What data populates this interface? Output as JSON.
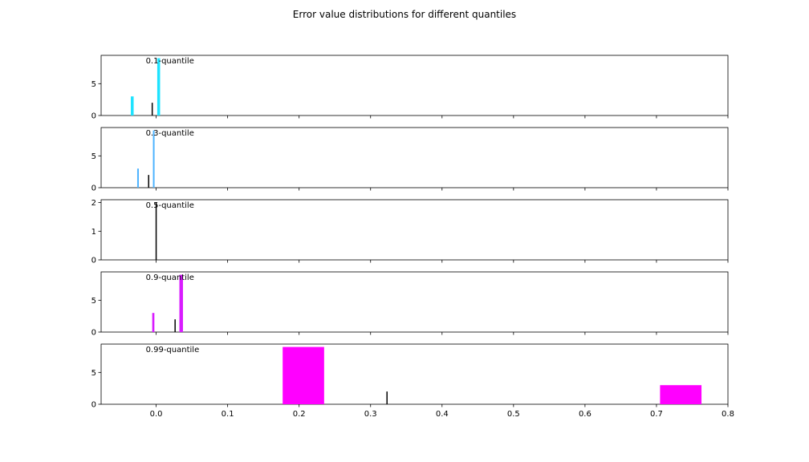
{
  "chart_data": {
    "type": "bar",
    "title": "Error value distributions for different quantiles",
    "xlim": [
      -0.077,
      0.8
    ],
    "xticks": [
      0.0,
      0.1,
      0.2,
      0.3,
      0.4,
      0.5,
      0.6,
      0.7,
      0.8
    ],
    "xtick_labels": [
      "0.0",
      "0.1",
      "0.2",
      "0.3",
      "0.4",
      "0.5",
      "0.6",
      "0.7",
      "0.8"
    ],
    "grid": false,
    "panels": [
      {
        "label": "0.1-quantile",
        "ylim": [
          0,
          9.45
        ],
        "yticks": [
          0,
          5
        ],
        "color": "#1ee3ff",
        "bars": [
          {
            "x0": -0.0355,
            "x1": -0.0315,
            "height": 3
          },
          {
            "x0": 0.0015,
            "x1": 0.0055,
            "height": 9
          }
        ],
        "marker": {
          "x": -0.0055,
          "height": 2
        }
      },
      {
        "label": "0.3-quantile",
        "ylim": [
          0,
          9.45
        ],
        "yticks": [
          0,
          5
        ],
        "color": "#4db3ff",
        "bars": [
          {
            "x0": -0.0265,
            "x1": -0.0245,
            "height": 3
          },
          {
            "x0": -0.0045,
            "x1": -0.0025,
            "height": 9
          }
        ],
        "marker": {
          "x": -0.0105,
          "height": 2
        }
      },
      {
        "label": "0.5-quantile",
        "ylim": [
          0,
          2.1
        ],
        "yticks": [
          0,
          1,
          2
        ],
        "color": "#333333",
        "bars": [],
        "marker": {
          "x": 0.0,
          "height": 2
        }
      },
      {
        "label": "0.9-quantile",
        "ylim": [
          0,
          9.45
        ],
        "yticks": [
          0,
          5
        ],
        "color": "#d91cff",
        "bars": [
          {
            "x0": -0.0055,
            "x1": -0.0025,
            "height": 3
          },
          {
            "x0": 0.0325,
            "x1": 0.0375,
            "height": 9
          }
        ],
        "marker": {
          "x": 0.0265,
          "height": 2
        }
      },
      {
        "label": "0.99-quantile",
        "ylim": [
          0,
          9.45
        ],
        "yticks": [
          0,
          5
        ],
        "color": "#ff00ff",
        "bars": [
          {
            "x0": 0.177,
            "x1": 0.235,
            "height": 9
          },
          {
            "x0": 0.705,
            "x1": 0.763,
            "height": 3
          }
        ],
        "marker": {
          "x": 0.323,
          "height": 2
        }
      }
    ]
  }
}
